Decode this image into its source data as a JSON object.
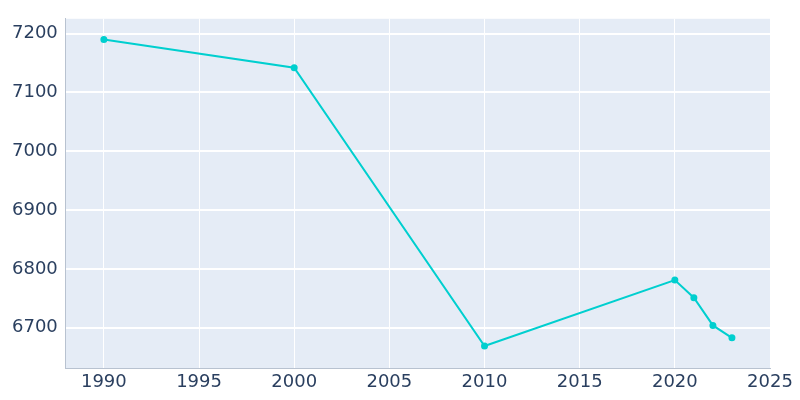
{
  "chart_data": {
    "type": "line",
    "x": [
      1990,
      2000,
      2010,
      2020,
      2021,
      2022,
      2023
    ],
    "values": [
      7190,
      7142,
      6669,
      6781,
      6751,
      6704,
      6683
    ],
    "color": "#00cfcf",
    "marker": "circle",
    "xlim": [
      1988,
      2025
    ],
    "xticks": [
      1990,
      1995,
      2000,
      2005,
      2010,
      2015,
      2020,
      2025
    ],
    "ylim": [
      6631,
      7225
    ],
    "yticks": [
      6700,
      6800,
      6900,
      7000,
      7100,
      7200
    ],
    "grid": true
  }
}
